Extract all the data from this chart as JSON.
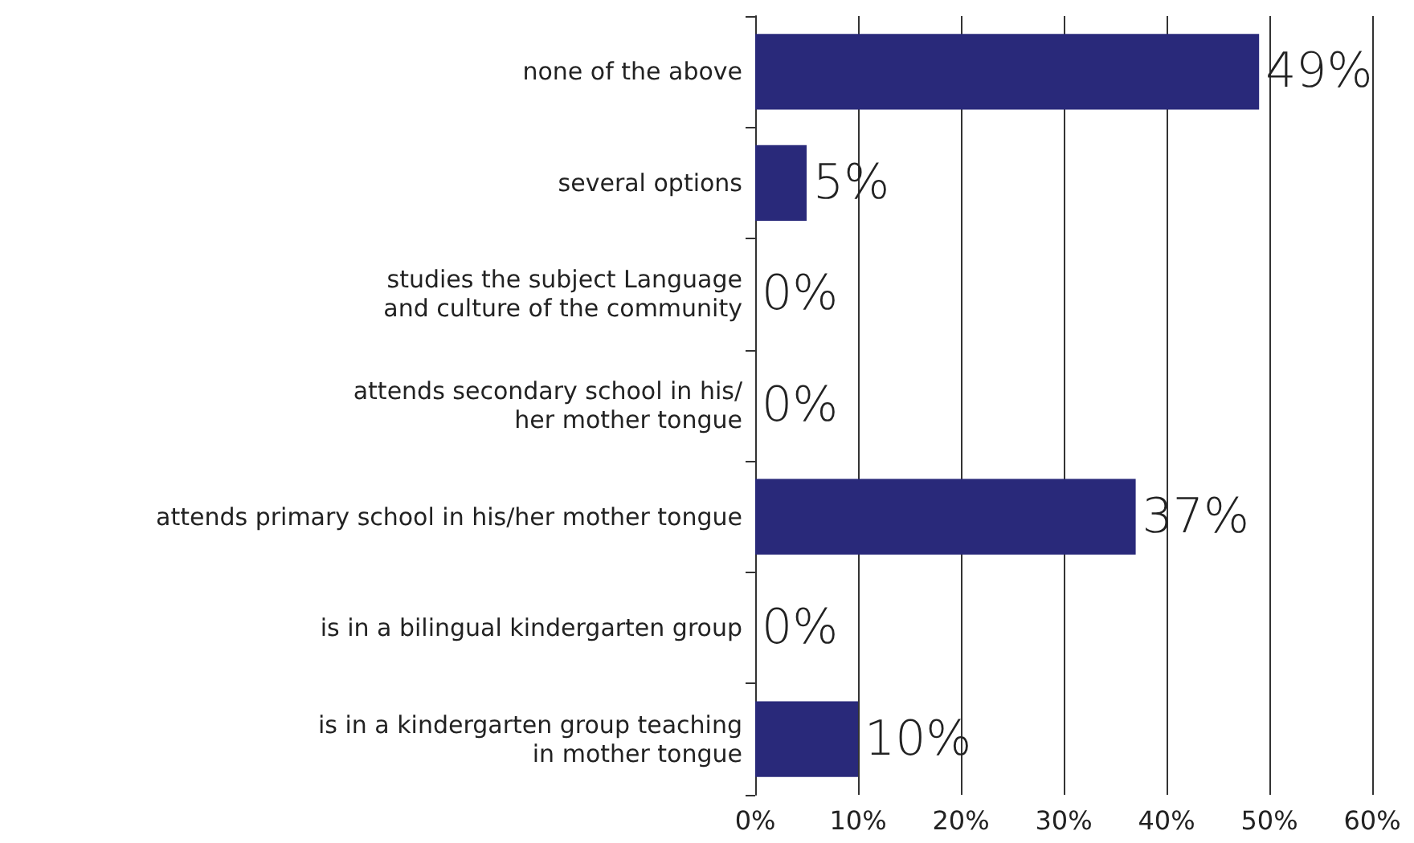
{
  "chart_data": {
    "type": "bar",
    "orientation": "horizontal",
    "categories": [
      "none of the above",
      "several options",
      "studies the subject Language\nand culture of the community",
      "attends secondary school in his/\nher mother tongue",
      "attends primary school in his/her mother tongue",
      "is in a bilingual kindergarten group",
      "is in a kindergarten group teaching\nin mother tongue"
    ],
    "values": [
      49,
      5,
      0,
      0,
      37,
      0,
      10
    ],
    "value_labels": [
      "49%",
      "5%",
      "0%",
      "0%",
      "37%",
      "0%",
      "10%"
    ],
    "color": "#29297a",
    "xlim": [
      0,
      60
    ],
    "xticks": [
      {
        "value": 0,
        "label": "0%"
      },
      {
        "value": 10,
        "label": "10%"
      },
      {
        "value": 20,
        "label": "20%"
      },
      {
        "value": 30,
        "label": "30%"
      },
      {
        "value": 40,
        "label": "40%"
      },
      {
        "value": 50,
        "label": "50%"
      },
      {
        "value": 60,
        "label": "60%"
      }
    ],
    "grid": "x"
  }
}
